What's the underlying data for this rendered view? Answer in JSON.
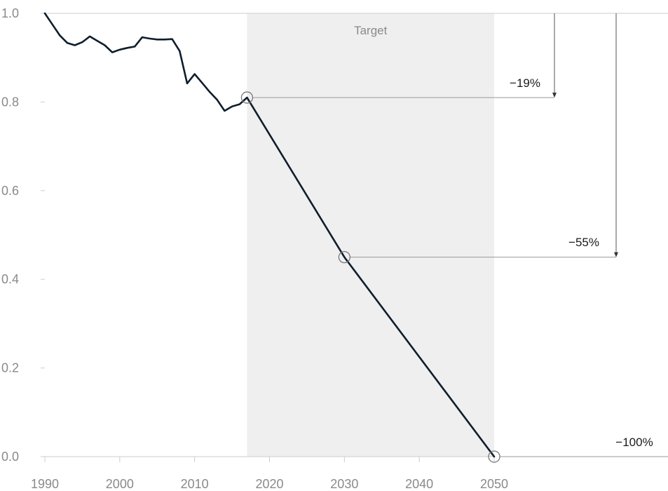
{
  "chart_data": {
    "type": "line",
    "title": "",
    "xlabel": "",
    "ylabel": "",
    "xlim": [
      1990,
      2050
    ],
    "ylim": [
      0.0,
      1.0
    ],
    "x_ticks": [
      1990,
      2000,
      2010,
      2020,
      2030,
      2040,
      2050
    ],
    "x_tick_labels": [
      "1990",
      "2000",
      "2010",
      "2020",
      "2030",
      "2040",
      "2050"
    ],
    "y_ticks": [
      0.0,
      0.2,
      0.4,
      0.6,
      0.8,
      1.0
    ],
    "y_tick_labels": [
      "0.0",
      "0.2",
      "0.4",
      "0.6",
      "0.8",
      "1.0"
    ],
    "grid": false,
    "shaded_region": {
      "x_start": 2017,
      "x_end": 2050,
      "label": "Target",
      "color": "#efefef"
    },
    "series": [
      {
        "color": "#0f1e2d",
        "x": [
          1990,
          1991,
          1992,
          1993,
          1994,
          1995,
          1996,
          1997,
          1998,
          1999,
          2000,
          2001,
          2002,
          2003,
          2004,
          2005,
          2006,
          2007,
          2008,
          2009,
          2010,
          2011,
          2012,
          2013,
          2014,
          2015,
          2016,
          2017,
          2030,
          2050
        ],
        "y": [
          1.0,
          0.975,
          0.95,
          0.933,
          0.928,
          0.935,
          0.948,
          0.938,
          0.928,
          0.912,
          0.918,
          0.922,
          0.925,
          0.946,
          0.943,
          0.941,
          0.941,
          0.942,
          0.915,
          0.842,
          0.863,
          0.843,
          0.823,
          0.805,
          0.78,
          0.79,
          0.795,
          0.81,
          0.45,
          0.0
        ]
      }
    ],
    "markers": [
      {
        "x": 2017,
        "y": 0.81
      },
      {
        "x": 2030,
        "y": 0.45
      },
      {
        "x": 2050,
        "y": 0.0
      }
    ],
    "annotations": [
      {
        "label": "−19%",
        "from_y": 1.0,
        "to_y": 0.81,
        "source_x": 2017,
        "value": -19
      },
      {
        "label": "−55%",
        "from_y": 1.0,
        "to_y": 0.45,
        "source_x": 2030,
        "value": -55
      },
      {
        "label": "−100%",
        "from_y": 1.0,
        "to_y": 0.0,
        "source_x": 2050,
        "value": -100
      }
    ],
    "colors": {
      "line": "#0f1e2d",
      "axis": "#cccccc",
      "guide": "#999999",
      "tick_text": "#8a8a8a"
    }
  }
}
